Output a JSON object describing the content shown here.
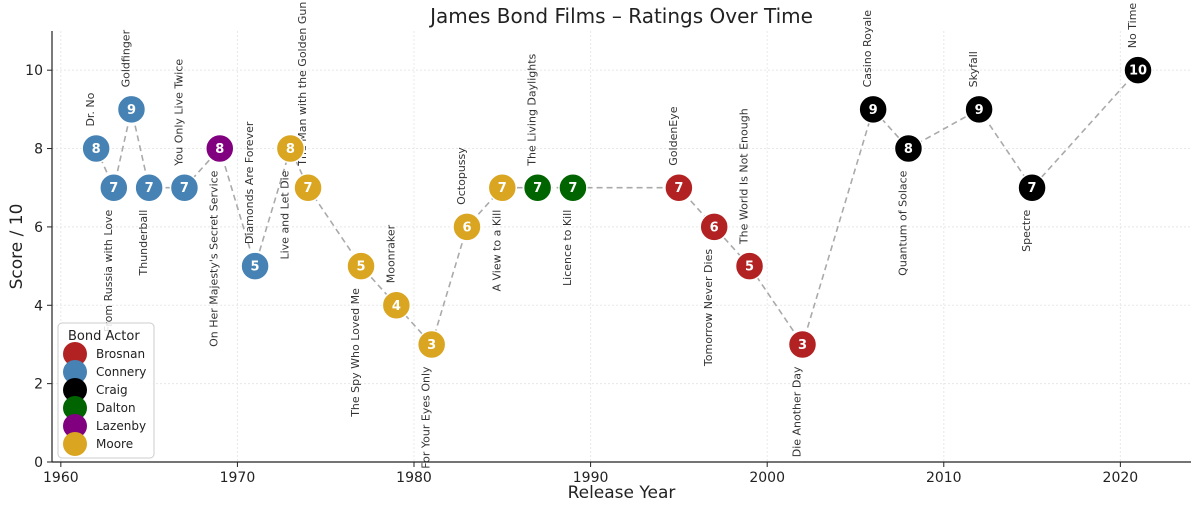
{
  "chart_data": {
    "type": "scatter",
    "title": "James Bond Films – Ratings Over Time",
    "xlabel": "Release Year",
    "ylabel": "Score / 10",
    "xlim": [
      1959.5,
      2024
    ],
    "ylim": [
      0,
      11
    ],
    "xticks": [
      1960,
      1970,
      1980,
      1990,
      2000,
      2010,
      2020
    ],
    "yticks": [
      0,
      2,
      4,
      6,
      8,
      10
    ],
    "grid": true,
    "legend": {
      "title": "Bond Actor",
      "placement": "bottom-left"
    },
    "actors": [
      "Brosnan",
      "Connery",
      "Craig",
      "Dalton",
      "Lazenby",
      "Moore"
    ],
    "colors": {
      "Brosnan": "#b22222",
      "Connery": "#4682b4",
      "Craig": "#000000",
      "Dalton": "#006400",
      "Lazenby": "#800080",
      "Moore": "#daa520"
    },
    "points": [
      {
        "title": "Dr. No",
        "year": 1962,
        "score": 8,
        "actor": "Connery"
      },
      {
        "title": "From Russia with Love",
        "year": 1963,
        "score": 7,
        "actor": "Connery"
      },
      {
        "title": "Goldfinger",
        "year": 1964,
        "score": 9,
        "actor": "Connery"
      },
      {
        "title": "Thunderball",
        "year": 1965,
        "score": 7,
        "actor": "Connery"
      },
      {
        "title": "You Only Live Twice",
        "year": 1967,
        "score": 7,
        "actor": "Connery"
      },
      {
        "title": "On Her Majesty's Secret Service",
        "year": 1969,
        "score": 8,
        "actor": "Lazenby"
      },
      {
        "title": "Diamonds Are Forever",
        "year": 1971,
        "score": 5,
        "actor": "Connery"
      },
      {
        "title": "Live and Let Die",
        "year": 1973,
        "score": 8,
        "actor": "Moore"
      },
      {
        "title": "The Man with the Golden Gun",
        "year": 1974,
        "score": 7,
        "actor": "Moore"
      },
      {
        "title": "The Spy Who Loved Me",
        "year": 1977,
        "score": 5,
        "actor": "Moore"
      },
      {
        "title": "Moonraker",
        "year": 1979,
        "score": 4,
        "actor": "Moore"
      },
      {
        "title": "For Your Eyes Only",
        "year": 1981,
        "score": 3,
        "actor": "Moore"
      },
      {
        "title": "Octopussy",
        "year": 1983,
        "score": 6,
        "actor": "Moore"
      },
      {
        "title": "A View to a Kill",
        "year": 1985,
        "score": 7,
        "actor": "Moore"
      },
      {
        "title": "The Living Daylights",
        "year": 1987,
        "score": 7,
        "actor": "Dalton"
      },
      {
        "title": "Licence to Kill",
        "year": 1989,
        "score": 7,
        "actor": "Dalton"
      },
      {
        "title": "GoldenEye",
        "year": 1995,
        "score": 7,
        "actor": "Brosnan"
      },
      {
        "title": "Tomorrow Never Dies",
        "year": 1997,
        "score": 6,
        "actor": "Brosnan"
      },
      {
        "title": "The World Is Not Enough",
        "year": 1999,
        "score": 5,
        "actor": "Brosnan"
      },
      {
        "title": "Die Another Day",
        "year": 2002,
        "score": 3,
        "actor": "Brosnan"
      },
      {
        "title": "Casino Royale",
        "year": 2006,
        "score": 9,
        "actor": "Craig"
      },
      {
        "title": "Quantum of Solace",
        "year": 2008,
        "score": 8,
        "actor": "Craig"
      },
      {
        "title": "Skyfall",
        "year": 2012,
        "score": 9,
        "actor": "Craig"
      },
      {
        "title": "Spectre",
        "year": 2015,
        "score": 7,
        "actor": "Craig"
      },
      {
        "title": "No Time to Die",
        "year": 2021,
        "score": 10,
        "actor": "Craig"
      }
    ]
  }
}
